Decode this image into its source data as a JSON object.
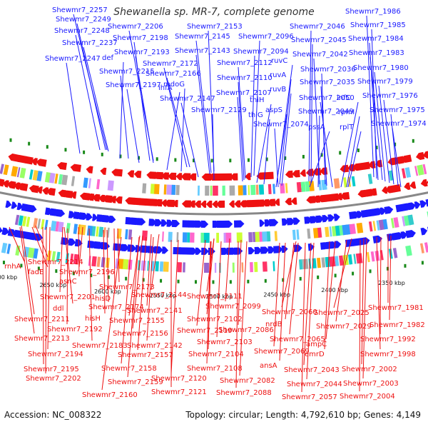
{
  "title": "Shewanella sp. MR-7, complete genome",
  "accession": "Accession: NC_008322",
  "topology": "Topology: circular; Length: 4,792,610 bp; Genes: 4,149",
  "colors": {
    "plus": "#1a1aff",
    "minus": "#ee1111",
    "backbone": "#888888",
    "tick": "#1a8a1a",
    "text": "#222222"
  },
  "kbp_labels": [
    {
      "text": "2700 kbp"
    },
    {
      "text": "2650 kbp"
    },
    {
      "text": "2600 kbp"
    },
    {
      "text": "2550 kbp"
    },
    {
      "text": "2500 kbp"
    },
    {
      "text": "2450 kbp"
    },
    {
      "text": "2400 kbp"
    },
    {
      "text": "2350 kbp"
    }
  ],
  "top_labels": [
    {
      "text": "Shewmr7_2257"
    },
    {
      "text": "Shewmr7_2249"
    },
    {
      "text": "Shewmr7_2248"
    },
    {
      "text": "Shewmr7_2237"
    },
    {
      "text": "Shewmr7_2247"
    },
    {
      "text": "def"
    },
    {
      "text": "Shewmr7_2215"
    },
    {
      "text": "Shewmr7_2206"
    },
    {
      "text": "Shewmr7_2198"
    },
    {
      "text": "Shewmr7_2193"
    },
    {
      "text": "Shewmr7_2197"
    },
    {
      "text": "Shewmr7_2172"
    },
    {
      "text": "Shewmr7_2166"
    },
    {
      "text": "ihfA"
    },
    {
      "text": "mdoG"
    },
    {
      "text": "Shewmr7_2153"
    },
    {
      "text": "Shewmr7_2145"
    },
    {
      "text": "Shewmr7_2143"
    },
    {
      "text": "Shewmr7_2147"
    },
    {
      "text": "Shewmr7_2129"
    },
    {
      "text": "Shewmr7_2096"
    },
    {
      "text": "Shewmr7_2094"
    },
    {
      "text": "Shewmr7_2112"
    },
    {
      "text": "Shewmr7_2110"
    },
    {
      "text": "Shewmr7_2107"
    },
    {
      "text": "thiH"
    },
    {
      "text": "thiG"
    },
    {
      "text": "ruvC"
    },
    {
      "text": "ruvA"
    },
    {
      "text": "ruvB"
    },
    {
      "text": "aspS"
    },
    {
      "text": "Shewmr7_2074"
    },
    {
      "text": "Shewmr7_2046"
    },
    {
      "text": "Shewmr7_2045"
    },
    {
      "text": "Shewmr7_2042"
    },
    {
      "text": "Shewmr7_2036"
    },
    {
      "text": "Shewmr7_2035"
    },
    {
      "text": "Shewmr7_2050"
    },
    {
      "text": "infC"
    },
    {
      "text": "Shewmr7_2049"
    },
    {
      "text": "rpmI"
    },
    {
      "text": "pssA"
    },
    {
      "text": "rplT"
    },
    {
      "text": "Shewmr7_1986"
    },
    {
      "text": "Shewmr7_1985"
    },
    {
      "text": "Shewmr7_1984"
    },
    {
      "text": "Shewmr7_1983"
    },
    {
      "text": "Shewmr7_1980"
    },
    {
      "text": "Shewmr7_1979"
    },
    {
      "text": "Shewmr7_1976"
    },
    {
      "text": "Shewmr7_1975"
    },
    {
      "text": "Shewmr7_1974"
    }
  ],
  "bottom_labels": [
    {
      "text": "rnhA"
    },
    {
      "text": "Shewmr7_2214"
    },
    {
      "text": "fadE"
    },
    {
      "text": "Shewmr7_2196"
    },
    {
      "text": "asnC"
    },
    {
      "text": "Shewmr7_2201"
    },
    {
      "text": "ddl"
    },
    {
      "text": "Shewmr7_2211"
    },
    {
      "text": "Shewmr7_2213"
    },
    {
      "text": "Shewmr7_2192"
    },
    {
      "text": "Shewmr7_2194"
    },
    {
      "text": "Shewmr7_2195"
    },
    {
      "text": "Shewmr7_2202"
    },
    {
      "text": "Shewmr7_2173"
    },
    {
      "text": "hisD"
    },
    {
      "text": "Shewmr7_2174"
    },
    {
      "text": "hisH"
    },
    {
      "text": "Shewmr7_2183"
    },
    {
      "text": "Shewmr7_2144"
    },
    {
      "text": "Shewmr7_2141"
    },
    {
      "text": "Shewmr7_2155"
    },
    {
      "text": "Shewmr7_2156"
    },
    {
      "text": "Shewmr7_2142"
    },
    {
      "text": "Shewmr7_2157"
    },
    {
      "text": "Shewmr7_2158"
    },
    {
      "text": "Shewmr7_2159"
    },
    {
      "text": "Shewmr7_2160"
    },
    {
      "text": "Shewmr7_2111"
    },
    {
      "text": "Shewmr7_2099"
    },
    {
      "text": "Shewmr7_2102"
    },
    {
      "text": "Shewmr7_2119"
    },
    {
      "text": "Shewmr7_2086"
    },
    {
      "text": "Shewmr7_2103"
    },
    {
      "text": "Shewmr7_2104"
    },
    {
      "text": "Shewmr7_2108"
    },
    {
      "text": "Shewmr7_2120"
    },
    {
      "text": "Shewmr7_2121"
    },
    {
      "text": "Shewmr7_2082"
    },
    {
      "text": "Shewmr7_2088"
    },
    {
      "text": "Shewmr7_2060"
    },
    {
      "text": "nrdB"
    },
    {
      "text": "Shewmr7_2065"
    },
    {
      "text": "Shewmr7_2069"
    },
    {
      "text": "ansA"
    },
    {
      "text": "Shewmr7_2057"
    },
    {
      "text": "Shewmr7_2025"
    },
    {
      "text": "Shewmr7_2029"
    },
    {
      "text": "ampC"
    },
    {
      "text": "emrD"
    },
    {
      "text": "Shewmr7_2043"
    },
    {
      "text": "Shewmr7_2044"
    },
    {
      "text": "Shewmr7_1981"
    },
    {
      "text": "Shewmr7_1982"
    },
    {
      "text": "Shewmr7_1992"
    },
    {
      "text": "Shewmr7_1998"
    },
    {
      "text": "Shewmr7_2002"
    },
    {
      "text": "Shewmr7_2003"
    },
    {
      "text": "Shewmr7_2004"
    }
  ]
}
